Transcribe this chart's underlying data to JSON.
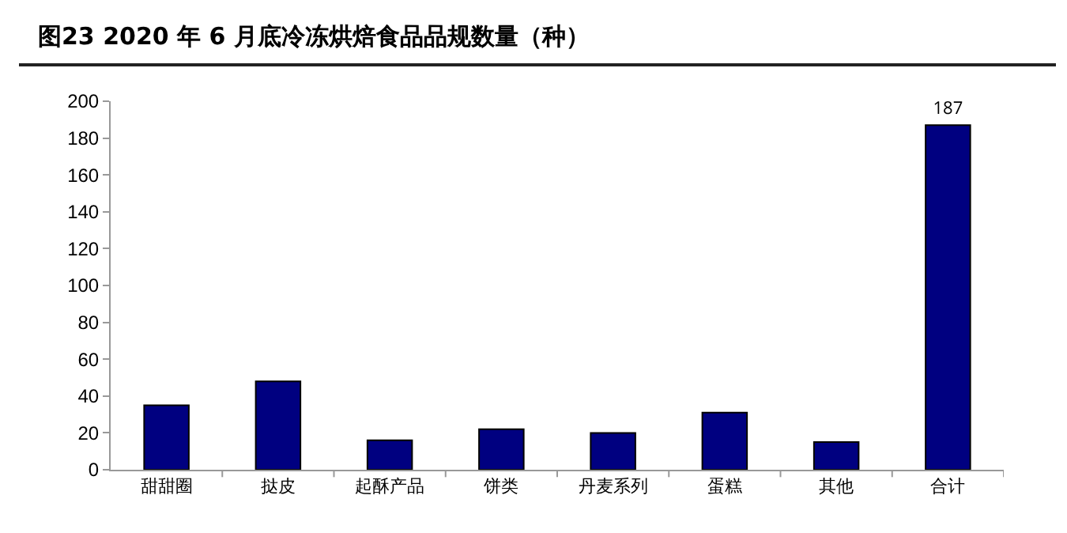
{
  "chart_data": {
    "type": "bar",
    "title": "图23 2020 年 6 月底冷冻烘焙食品品规数量（种）",
    "categories": [
      "甜甜圈",
      "挞皮",
      "起酥产品",
      "饼类",
      "丹麦系列",
      "蛋糕",
      "其他",
      "合计"
    ],
    "values": [
      35,
      48,
      16,
      22,
      20,
      31,
      15,
      187
    ],
    "value_labels": [
      null,
      null,
      null,
      null,
      null,
      null,
      null,
      "187"
    ],
    "color": "#000080",
    "ylim": [
      0,
      200
    ],
    "yticks": [
      0,
      20,
      40,
      60,
      80,
      100,
      120,
      140,
      160,
      180,
      200
    ],
    "grid": false,
    "legend": false
  }
}
